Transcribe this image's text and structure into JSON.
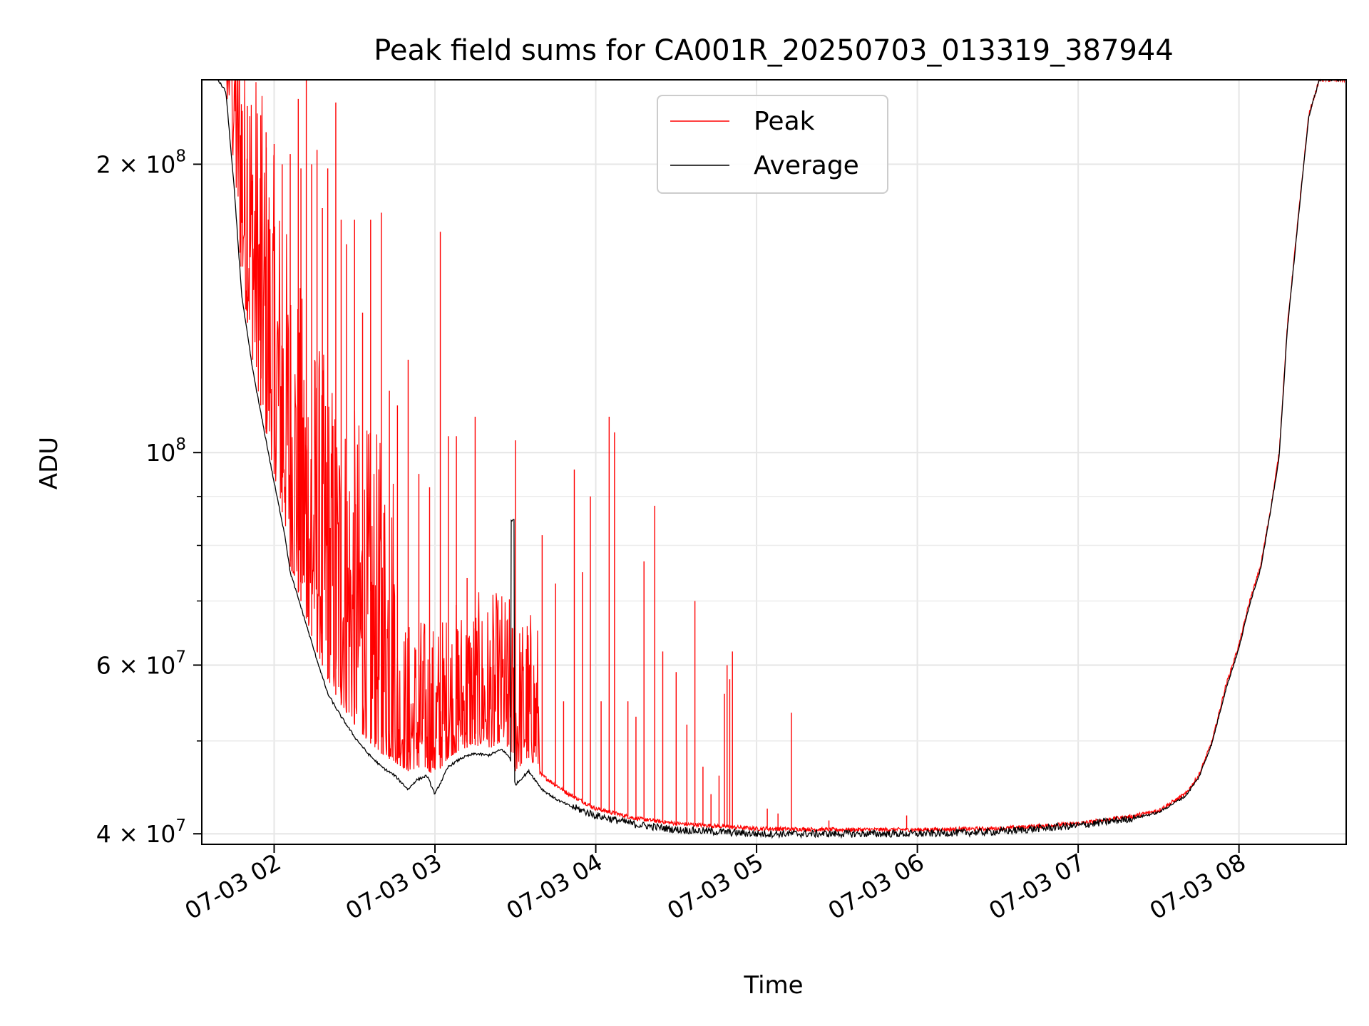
{
  "chart_data": {
    "type": "line",
    "title": "Peak field sums for CA001R_20250703_013319_387944",
    "xlabel": "Time",
    "ylabel": "ADU",
    "yscale": "log",
    "ylim": [
      39000000,
      245000000
    ],
    "xlim": [
      "2025-07-03 01:33",
      "2025-07-03 08:40"
    ],
    "grid": true,
    "legend_position": "top-center",
    "x_ticks": [
      {
        "t": "2025-07-03 02:00",
        "label": "07-03 02"
      },
      {
        "t": "2025-07-03 03:00",
        "label": "07-03 03"
      },
      {
        "t": "2025-07-03 04:00",
        "label": "07-03 04"
      },
      {
        "t": "2025-07-03 05:00",
        "label": "07-03 05"
      },
      {
        "t": "2025-07-03 06:00",
        "label": "07-03 06"
      },
      {
        "t": "2025-07-03 07:00",
        "label": "07-03 07"
      },
      {
        "t": "2025-07-03 08:00",
        "label": "07-03 08"
      }
    ],
    "y_major_ticks": [
      {
        "value": 40000000,
        "base": "4 × 10",
        "exp": "7"
      },
      {
        "value": 60000000,
        "base": "6 × 10",
        "exp": "7"
      },
      {
        "value": 100000000,
        "base": "10",
        "exp": "8"
      },
      {
        "value": 200000000,
        "base": "2 × 10",
        "exp": "8"
      }
    ],
    "y_minor_ticks": [
      50000000,
      70000000,
      80000000,
      90000000
    ],
    "series": [
      {
        "name": "Peak",
        "color": "#ff0000",
        "baseline": [
          [
            "2025-07-03 01:39",
            245000000
          ],
          [
            "2025-07-03 01:42",
            240000000
          ],
          [
            "2025-07-03 01:45",
            195000000
          ],
          [
            "2025-07-03 01:48",
            150000000
          ],
          [
            "2025-07-03 01:52",
            125000000
          ],
          [
            "2025-07-03 01:55",
            112000000
          ],
          [
            "2025-07-03 02:00",
            95000000
          ],
          [
            "2025-07-03 02:04",
            84000000
          ],
          [
            "2025-07-03 02:06",
            76000000
          ],
          [
            "2025-07-03 02:10",
            70000000
          ],
          [
            "2025-07-03 02:15",
            63000000
          ],
          [
            "2025-07-03 02:20",
            58000000
          ],
          [
            "2025-07-03 02:25",
            54500000
          ],
          [
            "2025-07-03 02:30",
            52000000
          ],
          [
            "2025-07-03 02:35",
            50000000
          ],
          [
            "2025-07-03 02:40",
            48500000
          ],
          [
            "2025-07-03 02:45",
            47500000
          ],
          [
            "2025-07-03 02:50",
            46500000
          ],
          [
            "2025-07-03 02:55",
            47000000
          ],
          [
            "2025-07-03 03:00",
            46000000
          ],
          [
            "2025-07-03 03:05",
            48000000
          ],
          [
            "2025-07-03 03:10",
            49000000
          ],
          [
            "2025-07-03 03:15",
            49500000
          ],
          [
            "2025-07-03 03:20",
            49000000
          ],
          [
            "2025-07-03 03:25",
            50000000
          ],
          [
            "2025-07-03 03:28",
            49000000
          ],
          [
            "2025-07-03 03:30",
            46500000
          ],
          [
            "2025-07-03 03:35",
            48000000
          ],
          [
            "2025-07-03 03:40",
            46000000
          ],
          [
            "2025-07-03 03:45",
            45000000
          ],
          [
            "2025-07-03 03:50",
            44000000
          ],
          [
            "2025-07-03 04:00",
            42500000
          ],
          [
            "2025-07-03 04:15",
            41500000
          ],
          [
            "2025-07-03 04:30",
            41000000
          ],
          [
            "2025-07-03 05:00",
            40500000
          ],
          [
            "2025-07-03 05:30",
            40400000
          ],
          [
            "2025-07-03 06:00",
            40400000
          ],
          [
            "2025-07-03 06:30",
            40500000
          ],
          [
            "2025-07-03 07:00",
            41000000
          ],
          [
            "2025-07-03 07:20",
            41700000
          ],
          [
            "2025-07-03 07:30",
            42300000
          ],
          [
            "2025-07-03 07:40",
            44000000
          ],
          [
            "2025-07-03 07:45",
            46000000
          ],
          [
            "2025-07-03 07:50",
            50000000
          ],
          [
            "2025-07-03 07:55",
            57000000
          ],
          [
            "2025-07-03 08:00",
            63000000
          ],
          [
            "2025-07-03 08:04",
            70000000
          ],
          [
            "2025-07-03 08:08",
            76000000
          ],
          [
            "2025-07-03 08:12",
            88000000
          ],
          [
            "2025-07-03 08:15",
            100000000
          ],
          [
            "2025-07-03 08:18",
            135000000
          ],
          [
            "2025-07-03 08:22",
            175000000
          ],
          [
            "2025-07-03 08:26",
            225000000
          ],
          [
            "2025-07-03 08:30",
            245000000
          ],
          [
            "2025-07-03 08:40",
            245000000
          ]
        ],
        "spikes": [
          [
            "2025-07-03 01:50",
            230000000
          ],
          [
            "2025-07-03 01:52",
            195000000
          ],
          [
            "2025-07-03 01:55",
            225000000
          ],
          [
            "2025-07-03 01:57",
            216000000
          ],
          [
            "2025-07-03 02:00",
            210000000
          ],
          [
            "2025-07-03 02:03",
            200000000
          ],
          [
            "2025-07-03 02:06",
            205000000
          ],
          [
            "2025-07-03 02:09",
            234000000
          ],
          [
            "2025-07-03 02:10",
            198000000
          ],
          [
            "2025-07-03 02:12",
            245000000
          ],
          [
            "2025-07-03 02:14",
            200000000
          ],
          [
            "2025-07-03 02:16",
            207000000
          ],
          [
            "2025-07-03 02:18",
            180000000
          ],
          [
            "2025-07-03 02:20",
            198000000
          ],
          [
            "2025-07-03 02:23",
            232000000
          ],
          [
            "2025-07-03 02:25",
            175000000
          ],
          [
            "2025-07-03 02:27",
            165000000
          ],
          [
            "2025-07-03 02:30",
            175000000
          ],
          [
            "2025-07-03 02:33",
            140000000
          ],
          [
            "2025-07-03 02:36",
            175000000
          ],
          [
            "2025-07-03 02:40",
            178000000
          ],
          [
            "2025-07-03 02:43",
            116000000
          ],
          [
            "2025-07-03 02:46",
            112000000
          ],
          [
            "2025-07-03 02:50",
            125000000
          ],
          [
            "2025-07-03 02:54",
            95000000
          ],
          [
            "2025-07-03 02:58",
            92000000
          ],
          [
            "2025-07-03 03:02",
            170000000
          ],
          [
            "2025-07-03 03:05",
            104000000
          ],
          [
            "2025-07-03 03:08",
            104000000
          ],
          [
            "2025-07-03 03:12",
            74000000
          ],
          [
            "2025-07-03 03:15",
            109000000
          ],
          [
            "2025-07-03 03:22",
            60000000
          ],
          [
            "2025-07-03 03:24",
            52000000
          ],
          [
            "2025-07-03 03:27",
            56000000
          ],
          [
            "2025-07-03 03:30",
            103000000
          ],
          [
            "2025-07-03 03:35",
            58000000
          ],
          [
            "2025-07-03 03:40",
            82000000
          ],
          [
            "2025-07-03 03:45",
            73000000
          ],
          [
            "2025-07-03 03:48",
            55000000
          ],
          [
            "2025-07-03 03:52",
            96000000
          ],
          [
            "2025-07-03 03:55",
            75000000
          ],
          [
            "2025-07-03 03:58",
            90000000
          ],
          [
            "2025-07-03 04:02",
            55000000
          ],
          [
            "2025-07-03 04:05",
            109000000
          ],
          [
            "2025-07-03 04:07",
            105000000
          ],
          [
            "2025-07-03 04:12",
            55000000
          ],
          [
            "2025-07-03 04:15",
            53000000
          ],
          [
            "2025-07-03 04:18",
            77000000
          ],
          [
            "2025-07-03 04:22",
            88000000
          ],
          [
            "2025-07-03 04:25",
            62000000
          ],
          [
            "2025-07-03 04:30",
            59000000
          ],
          [
            "2025-07-03 04:34",
            52000000
          ],
          [
            "2025-07-03 04:37",
            70000000
          ],
          [
            "2025-07-03 04:40",
            47000000
          ],
          [
            "2025-07-03 04:43",
            44000000
          ],
          [
            "2025-07-03 04:46",
            46000000
          ],
          [
            "2025-07-03 04:48",
            56000000
          ],
          [
            "2025-07-03 04:49",
            60000000
          ],
          [
            "2025-07-03 04:50",
            58000000
          ],
          [
            "2025-07-03 04:51",
            62000000
          ],
          [
            "2025-07-03 05:04",
            42500000
          ],
          [
            "2025-07-03 05:08",
            42000000
          ],
          [
            "2025-07-03 05:13",
            53500000
          ],
          [
            "2025-07-03 05:27",
            41300000
          ],
          [
            "2025-07-03 05:56",
            41800000
          ]
        ]
      },
      {
        "name": "Average",
        "color": "#000000",
        "values": [
          [
            "2025-07-03 01:39",
            245000000
          ],
          [
            "2025-07-03 01:42",
            238000000
          ],
          [
            "2025-07-03 01:45",
            190000000
          ],
          [
            "2025-07-03 01:48",
            145000000
          ],
          [
            "2025-07-03 01:52",
            122000000
          ],
          [
            "2025-07-03 01:55",
            110000000
          ],
          [
            "2025-07-03 02:00",
            93000000
          ],
          [
            "2025-07-03 02:04",
            82000000
          ],
          [
            "2025-07-03 02:06",
            75000000
          ],
          [
            "2025-07-03 02:10",
            69000000
          ],
          [
            "2025-07-03 02:15",
            62000000
          ],
          [
            "2025-07-03 02:20",
            56000000
          ],
          [
            "2025-07-03 02:25",
            53000000
          ],
          [
            "2025-07-03 02:30",
            50500000
          ],
          [
            "2025-07-03 02:35",
            48500000
          ],
          [
            "2025-07-03 02:40",
            47000000
          ],
          [
            "2025-07-03 02:45",
            46000000
          ],
          [
            "2025-07-03 02:50",
            44500000
          ],
          [
            "2025-07-03 02:53",
            45500000
          ],
          [
            "2025-07-03 02:57",
            46000000
          ],
          [
            "2025-07-03 03:00",
            44000000
          ],
          [
            "2025-07-03 03:05",
            47000000
          ],
          [
            "2025-07-03 03:10",
            48000000
          ],
          [
            "2025-07-03 03:15",
            48500000
          ],
          [
            "2025-07-03 03:20",
            48300000
          ],
          [
            "2025-07-03 03:25",
            49000000
          ],
          [
            "2025-07-03 03:28",
            48000000
          ],
          [
            "2025-07-03 03:29",
            85000000
          ],
          [
            "2025-07-03 03:30",
            45000000
          ],
          [
            "2025-07-03 03:35",
            46500000
          ],
          [
            "2025-07-03 03:40",
            44500000
          ],
          [
            "2025-07-03 03:45",
            43500000
          ],
          [
            "2025-07-03 03:50",
            42800000
          ],
          [
            "2025-07-03 04:00",
            41800000
          ],
          [
            "2025-07-03 04:15",
            40900000
          ],
          [
            "2025-07-03 04:30",
            40400000
          ],
          [
            "2025-07-03 05:00",
            40000000
          ],
          [
            "2025-07-03 05:30",
            40000000
          ],
          [
            "2025-07-03 06:00",
            40000000
          ],
          [
            "2025-07-03 06:30",
            40200000
          ],
          [
            "2025-07-03 07:00",
            40800000
          ],
          [
            "2025-07-03 07:20",
            41500000
          ],
          [
            "2025-07-03 07:30",
            42100000
          ],
          [
            "2025-07-03 07:40",
            43800000
          ],
          [
            "2025-07-03 07:45",
            45800000
          ],
          [
            "2025-07-03 07:50",
            49800000
          ],
          [
            "2025-07-03 07:55",
            56500000
          ],
          [
            "2025-07-03 08:00",
            62500000
          ],
          [
            "2025-07-03 08:04",
            69500000
          ],
          [
            "2025-07-03 08:08",
            75500000
          ],
          [
            "2025-07-03 08:12",
            87500000
          ],
          [
            "2025-07-03 08:15",
            99000000
          ],
          [
            "2025-07-03 08:18",
            134000000
          ],
          [
            "2025-07-03 08:22",
            174000000
          ],
          [
            "2025-07-03 08:26",
            224000000
          ],
          [
            "2025-07-03 08:30",
            245000000
          ],
          [
            "2025-07-03 08:40",
            245000000
          ]
        ]
      }
    ]
  }
}
